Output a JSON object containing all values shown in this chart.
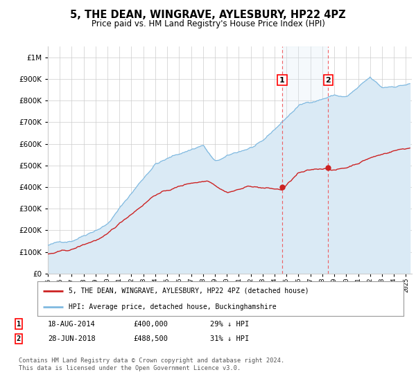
{
  "title": "5, THE DEAN, WINGRAVE, AYLESBURY, HP22 4PZ",
  "subtitle": "Price paid vs. HM Land Registry's House Price Index (HPI)",
  "ytick_values": [
    0,
    100000,
    200000,
    300000,
    400000,
    500000,
    600000,
    700000,
    800000,
    900000,
    1000000
  ],
  "ylim": [
    0,
    1050000
  ],
  "xlim_start": 1995.0,
  "xlim_end": 2025.5,
  "hpi_color": "#7fb9e0",
  "hpi_fill_color": "#daeaf5",
  "price_color": "#cc2222",
  "marker_color": "#cc2222",
  "sale1_x": 2014.63,
  "sale1_y": 400000,
  "sale2_x": 2018.49,
  "sale2_y": 488500,
  "legend_line1": "5, THE DEAN, WINGRAVE, AYLESBURY, HP22 4PZ (detached house)",
  "legend_line2": "HPI: Average price, detached house, Buckinghamshire",
  "table_row1": [
    "1",
    "18-AUG-2014",
    "£400,000",
    "29% ↓ HPI"
  ],
  "table_row2": [
    "2",
    "28-JUN-2018",
    "£488,500",
    "31% ↓ HPI"
  ],
  "footnote": "Contains HM Land Registry data © Crown copyright and database right 2024.\nThis data is licensed under the Open Government Licence v3.0.",
  "bg_color": "#ffffff",
  "grid_color": "#cccccc"
}
